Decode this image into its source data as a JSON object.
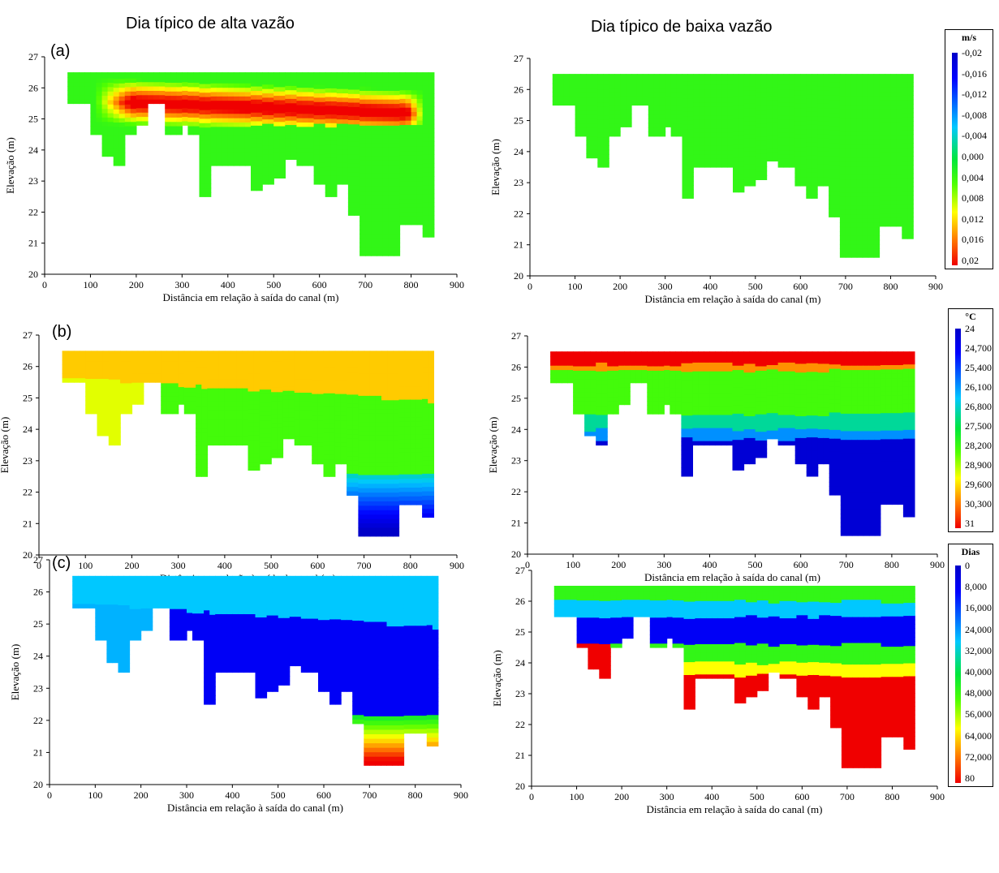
{
  "column_titles": {
    "left": "Dia típico de alta vazão",
    "right": "Dia típico de baixa vazão"
  },
  "row_labels": [
    "(a)",
    "(b)",
    "(c)"
  ],
  "legends": [
    {
      "title": "m/s",
      "ticks": [
        "-0,02",
        "-0,016",
        "-0,012",
        "-0,008",
        "-0,004",
        "0,000",
        "0,004",
        "0,008",
        "0,012",
        "0,016",
        "0,02"
      ]
    },
    {
      "title": "°C",
      "ticks": [
        "24",
        "24,700",
        "25,400",
        "26,100",
        "26,800",
        "27,500",
        "28,200",
        "28,900",
        "29,600",
        "30,300",
        "31"
      ]
    },
    {
      "title": "Dias",
      "ticks": [
        "0",
        "8,000",
        "16,000",
        "24,000",
        "32,000",
        "40,000",
        "48,000",
        "56,000",
        "64,000",
        "72,000",
        "80"
      ]
    }
  ],
  "colors": {
    "jet": [
      "#00007f",
      "#0000ff",
      "#0080ff",
      "#00ffff",
      "#7fff7f",
      "#00e000",
      "#7fff00",
      "#ffff00",
      "#ff8000",
      "#ff0000",
      "#d40000"
    ]
  },
  "chart_data": [
    {
      "type": "heatmap",
      "panel": "a-high-flow",
      "xlabel": "Distância em relação à saída do canal (m)",
      "ylabel": "Elevação (m)",
      "xlim": [
        0,
        900
      ],
      "ylim": [
        20,
        27
      ],
      "xticks": [
        "0",
        "100",
        "200",
        "300",
        "400",
        "500",
        "600",
        "700",
        "800",
        "900"
      ],
      "yticks": [
        "20",
        "21",
        "22",
        "23",
        "24",
        "25",
        "26",
        "27"
      ],
      "profile": [
        [
          50,
          25.5
        ],
        [
          100,
          25.5
        ],
        [
          100,
          24.5
        ],
        [
          125,
          24.5
        ],
        [
          125,
          23.8
        ],
        [
          150,
          23.8
        ],
        [
          150,
          23.5
        ],
        [
          175,
          23.5
        ],
        [
          175,
          24.5
        ],
        [
          200,
          24.5
        ],
        [
          200,
          24.8
        ],
        [
          225,
          24.8
        ],
        [
          225,
          25.5
        ],
        [
          260,
          25.5
        ],
        [
          260,
          24.5
        ],
        [
          290,
          24.5
        ],
        [
          290,
          24.8
        ],
        [
          310,
          24.8
        ],
        [
          310,
          24.5
        ],
        [
          335,
          24.5
        ],
        [
          335,
          22.5
        ],
        [
          360,
          22.5
        ],
        [
          360,
          23.5
        ],
        [
          445,
          23.5
        ],
        [
          445,
          22.7
        ],
        [
          475,
          22.7
        ],
        [
          475,
          22.9
        ],
        [
          500,
          22.9
        ],
        [
          500,
          23.1
        ],
        [
          525,
          23.1
        ],
        [
          525,
          23.7
        ],
        [
          550,
          23.7
        ],
        [
          550,
          23.5
        ],
        [
          580,
          23.5
        ],
        [
          580,
          22.9
        ],
        [
          605,
          22.9
        ],
        [
          605,
          22.5
        ],
        [
          630,
          22.5
        ],
        [
          630,
          22.9
        ],
        [
          655,
          22.9
        ],
        [
          655,
          21.9
        ],
        [
          685,
          21.9
        ],
        [
          685,
          20.6
        ],
        [
          770,
          20.6
        ],
        [
          770,
          21.6
        ],
        [
          815,
          21.6
        ],
        [
          815,
          21.2
        ],
        [
          840,
          21.2
        ],
        [
          840,
          26.5
        ],
        [
          50,
          26.5
        ]
      ],
      "field": "velocity",
      "surface_value": 0.0,
      "core_value": 0.02,
      "core_depth": [
        25.0,
        26.2
      ],
      "core_x": [
        170,
        800
      ],
      "bottom_value": 0.003
    },
    {
      "type": "heatmap",
      "panel": "a-low-flow",
      "xlabel": "Distância em relação à saída do canal (m)",
      "ylabel": "Elevação (m)",
      "xlim": [
        0,
        900
      ],
      "ylim": [
        20,
        27
      ],
      "xticks": [
        "0",
        "100",
        "200",
        "300",
        "400",
        "500",
        "600",
        "700",
        "800",
        "900"
      ],
      "yticks": [
        "20",
        "21",
        "22",
        "23",
        "24",
        "25",
        "26",
        "27"
      ],
      "field": "velocity",
      "uniform_value": 0.003
    },
    {
      "type": "heatmap",
      "panel": "b-high-flow",
      "xlabel": "Distância em relação à saída do canal (m)",
      "ylabel": "Elevação (m)",
      "xlim": [
        0,
        900
      ],
      "ylim": [
        20,
        27
      ],
      "xticks": [
        "0",
        "100",
        "200",
        "300",
        "400",
        "500",
        "600",
        "700",
        "800",
        "900"
      ],
      "yticks": [
        "20",
        "21",
        "22",
        "23",
        "24",
        "25",
        "26",
        "27"
      ],
      "field": "temperature",
      "surface_value": 29.9,
      "mid_value": 28.2,
      "bottom_value": 24.0
    },
    {
      "type": "heatmap",
      "panel": "b-low-flow",
      "xlabel": "Distância em relação à saída do canal (m)",
      "ylabel": "Elevação (m)",
      "xlim": [
        0,
        900
      ],
      "ylim": [
        20,
        27
      ],
      "xticks": [
        "0",
        "100",
        "200",
        "300",
        "400",
        "500",
        "600",
        "700",
        "800",
        "900"
      ],
      "yticks": [
        "20",
        "21",
        "22",
        "23",
        "24",
        "25",
        "26",
        "27"
      ],
      "field": "temperature",
      "surface_value": 31.0,
      "mid_value": 28.0,
      "bottom_value": 24.0
    },
    {
      "type": "heatmap",
      "panel": "c-high-flow",
      "xlabel": "Distância em relação à saída do canal (m)",
      "ylabel": "Elevação (m)",
      "xlim": [
        0,
        900
      ],
      "ylim": [
        20,
        27
      ],
      "xticks": [
        "0",
        "100",
        "200",
        "300",
        "400",
        "500",
        "600",
        "700",
        "800",
        "900"
      ],
      "yticks": [
        "20",
        "21",
        "22",
        "23",
        "24",
        "25",
        "26",
        "27"
      ],
      "field": "age",
      "surface_value": 28,
      "mid_value": 10,
      "bottom_value": 72
    },
    {
      "type": "heatmap",
      "panel": "c-low-flow",
      "xlabel": "Distância em relação à saída do canal (m)",
      "ylabel": "Elevação (m)",
      "xlim": [
        0,
        900
      ],
      "ylim": [
        20,
        27
      ],
      "xticks": [
        "0",
        "100",
        "200",
        "300",
        "400",
        "500",
        "600",
        "700",
        "800",
        "900"
      ],
      "yticks": [
        "20",
        "21",
        "22",
        "23",
        "24",
        "25",
        "26",
        "27"
      ],
      "field": "age",
      "surface_value": 44,
      "mid_value": 12,
      "bottom_value": 80
    }
  ]
}
